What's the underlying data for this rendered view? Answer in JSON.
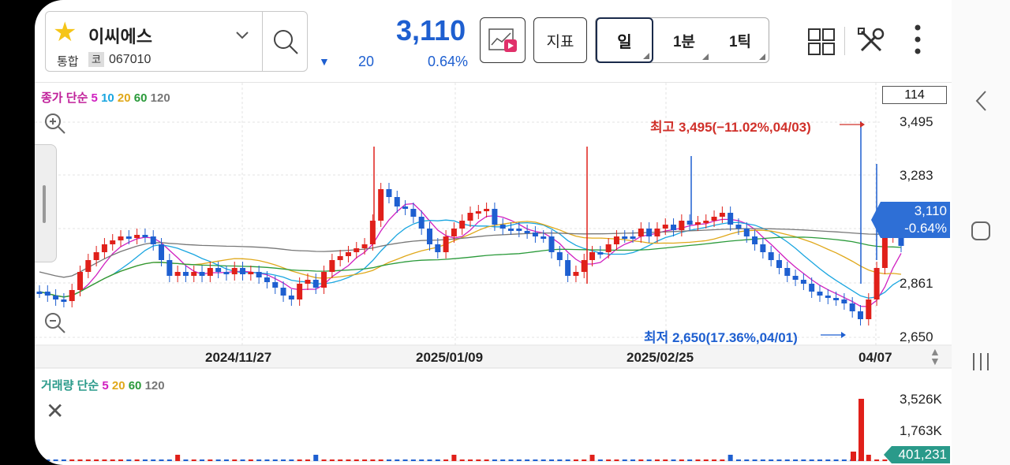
{
  "header": {
    "stock_name": "이씨에스",
    "market": "통합",
    "code_badge": "코",
    "code": "067010",
    "price": "3,110",
    "change": "20",
    "change_rate": "0.64%",
    "indicator_label": "지표",
    "period_tabs": [
      "일",
      "1분",
      "1틱"
    ]
  },
  "chart": {
    "ma_legend": {
      "prefix": "종가 단순",
      "p5": "5",
      "p10": "10",
      "p20": "20",
      "p60": "60",
      "p120": "120"
    },
    "vol_legend": {
      "prefix": "거래량 단순",
      "p5": "5",
      "p20": "20",
      "p60": "60",
      "p120": "120"
    },
    "count": "114",
    "y_labels": [
      "3,495",
      "3,283",
      "2,861",
      "2,650"
    ],
    "current_price": "3,110",
    "current_rate": "-0.64%",
    "high_annotation": "최고 3,495(−11.02%,04/03)",
    "low_annotation": "최저 2,650(17.36%,04/01)",
    "x_labels": [
      "2024/11/27",
      "2025/01/09",
      "2025/02/25",
      "04/07"
    ],
    "vol_y_labels": [
      "3,526K",
      "1,763K"
    ],
    "current_volume": "401,231"
  },
  "colors": {
    "up": "#e0201a",
    "down": "#1e5fd0",
    "ma5": "#d020c0",
    "ma10": "#1aa6e0",
    "ma20": "#e0a81a",
    "ma60": "#2a9a3a",
    "ma120": "#777777"
  },
  "icons": {
    "star": "star-icon",
    "search": "search-icon",
    "chart_video": "chart-video-icon",
    "grid": "grid-icon",
    "tools": "tools-icon",
    "more": "more-vertical-icon"
  }
}
